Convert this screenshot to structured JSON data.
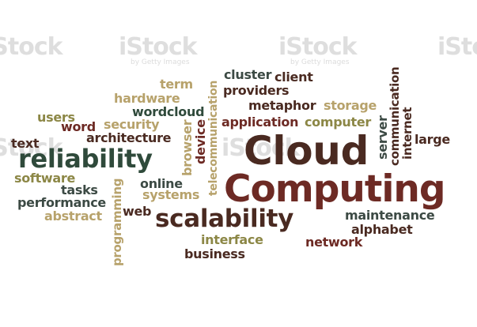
{
  "watermark": {
    "brand": "iStock",
    "credit": "by Getty Images"
  },
  "words": {
    "cloud": "Cloud",
    "computing": "Computing",
    "scalability": "scalability",
    "reliability": "reliability",
    "cluster": "cluster",
    "client": "client",
    "providers": "providers",
    "metaphor": "metaphor",
    "storage": "storage",
    "application": "application",
    "computer": "computer",
    "term": "term",
    "hardware": "hardware",
    "wordcloud": "wordcloud",
    "users": "users",
    "security": "security",
    "word": "word",
    "architecture": "architecture",
    "text": "text",
    "software": "software",
    "tasks": "tasks",
    "performance": "performance",
    "abstract": "abstract",
    "online": "online",
    "systems": "systems",
    "web": "web",
    "interface": "interface",
    "business": "business",
    "network": "network",
    "maintenance": "maintenance",
    "alphabet": "alphabet",
    "large": "large",
    "server": "server",
    "communication": "communication",
    "internet": "internet",
    "browser": "browser",
    "device": "device",
    "telecommunication": "telecommunication",
    "programming": "programming"
  },
  "colors": {
    "dark_brown": "#4a2a21",
    "maroon": "#6d2a24",
    "olive": "#8c8746",
    "tan": "#b7a26b",
    "slate": "#3c4a44",
    "dark_green": "#2f4a3b"
  }
}
